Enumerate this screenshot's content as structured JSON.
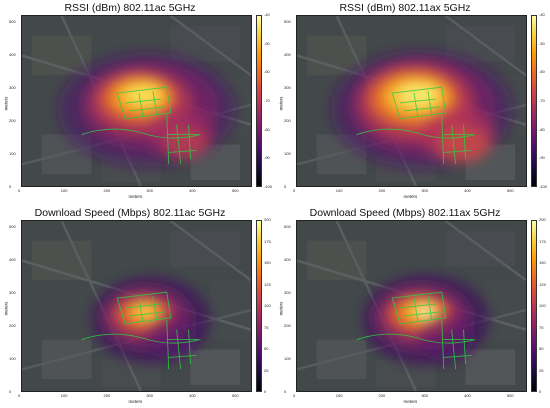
{
  "chart_data": [
    {
      "type": "heatmap",
      "title": "RSSI (dBm) 802.11ac 5GHz",
      "xlabel": "meters",
      "ylabel": "meters",
      "xlim": [
        0,
        540
      ],
      "ylim": [
        0,
        520
      ],
      "xticks": [
        "0",
        "100",
        "200",
        "300",
        "400",
        "500"
      ],
      "yticks": [
        "0",
        "100",
        "200",
        "300",
        "400",
        "500"
      ],
      "colorbar": {
        "ticks": [
          "-40",
          "-50",
          "-60",
          "-70",
          "-80",
          "-90",
          "-100"
        ],
        "range": [
          -100,
          -40
        ]
      },
      "grid": false
    },
    {
      "type": "heatmap",
      "title": "RSSI (dBm) 802.11ax 5GHz",
      "xlabel": "meters",
      "ylabel": "meters",
      "xlim": [
        0,
        540
      ],
      "ylim": [
        0,
        520
      ],
      "xticks": [
        "0",
        "100",
        "200",
        "300",
        "400",
        "500"
      ],
      "yticks": [
        "0",
        "100",
        "200",
        "300",
        "400",
        "500"
      ],
      "colorbar": {
        "ticks": [
          "-40",
          "-50",
          "-60",
          "-70",
          "-80",
          "-90",
          "-100"
        ],
        "range": [
          -100,
          -40
        ]
      },
      "grid": false
    },
    {
      "type": "heatmap",
      "title": "Download Speed (Mbps) 802.11ac 5GHz",
      "xlabel": "meters",
      "ylabel": "meters",
      "xlim": [
        0,
        540
      ],
      "ylim": [
        0,
        520
      ],
      "xticks": [
        "0",
        "100",
        "200",
        "300",
        "400",
        "500"
      ],
      "yticks": [
        "0",
        "100",
        "200",
        "300",
        "400",
        "500"
      ],
      "colorbar": {
        "ticks": [
          "200",
          "175",
          "150",
          "125",
          "100",
          "75",
          "50",
          "25",
          "0"
        ],
        "range": [
          0,
          200
        ]
      },
      "grid": false
    },
    {
      "type": "heatmap",
      "title": "Download Speed (Mbps) 802.11ax 5GHz",
      "xlabel": "meters",
      "ylabel": "meters",
      "xlim": [
        0,
        540
      ],
      "ylim": [
        0,
        520
      ],
      "xticks": [
        "0",
        "100",
        "200",
        "300",
        "400",
        "500"
      ],
      "yticks": [
        "0",
        "100",
        "200",
        "300",
        "400",
        "500"
      ],
      "colorbar": {
        "ticks": [
          "200",
          "175",
          "150",
          "125",
          "100",
          "75",
          "50",
          "25",
          "0"
        ],
        "range": [
          0,
          200
        ]
      },
      "grid": false
    }
  ]
}
